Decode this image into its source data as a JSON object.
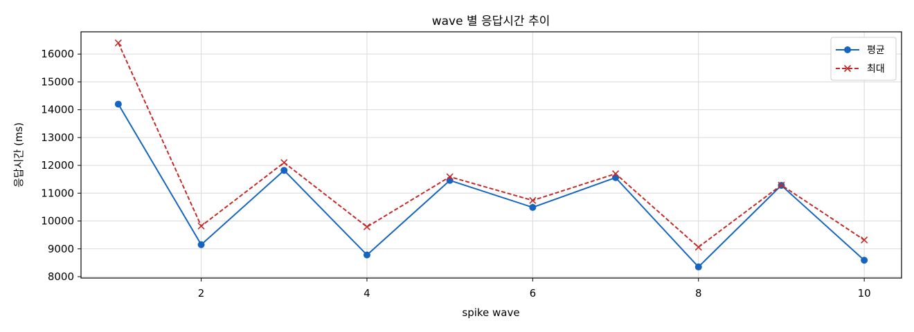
{
  "chart_data": {
    "type": "line",
    "title": "wave 별 응답시간 추이",
    "xlabel": "spike wave",
    "ylabel": "응답시간 (ms)",
    "x": [
      1,
      2,
      3,
      4,
      5,
      6,
      7,
      8,
      9,
      10
    ],
    "xlim": [
      0.55,
      10.45
    ],
    "ylim": [
      7950,
      16800
    ],
    "xticks": [
      2,
      4,
      6,
      8,
      10
    ],
    "yticks": [
      8000,
      9000,
      10000,
      11000,
      12000,
      13000,
      14000,
      15000,
      16000
    ],
    "grid": true,
    "legend_position": "top-right",
    "series": [
      {
        "name": "평균",
        "values": [
          14200,
          9150,
          11820,
          8780,
          11460,
          10490,
          11560,
          8350,
          11280,
          8590
        ],
        "color": "#1565c0",
        "line_style": "solid",
        "marker": "circle"
      },
      {
        "name": "최대",
        "values": [
          16400,
          9820,
          12100,
          9790,
          11590,
          10740,
          11700,
          9060,
          11290,
          9320
        ],
        "color": "#c62828",
        "line_style": "dashed",
        "marker": "x"
      }
    ]
  }
}
